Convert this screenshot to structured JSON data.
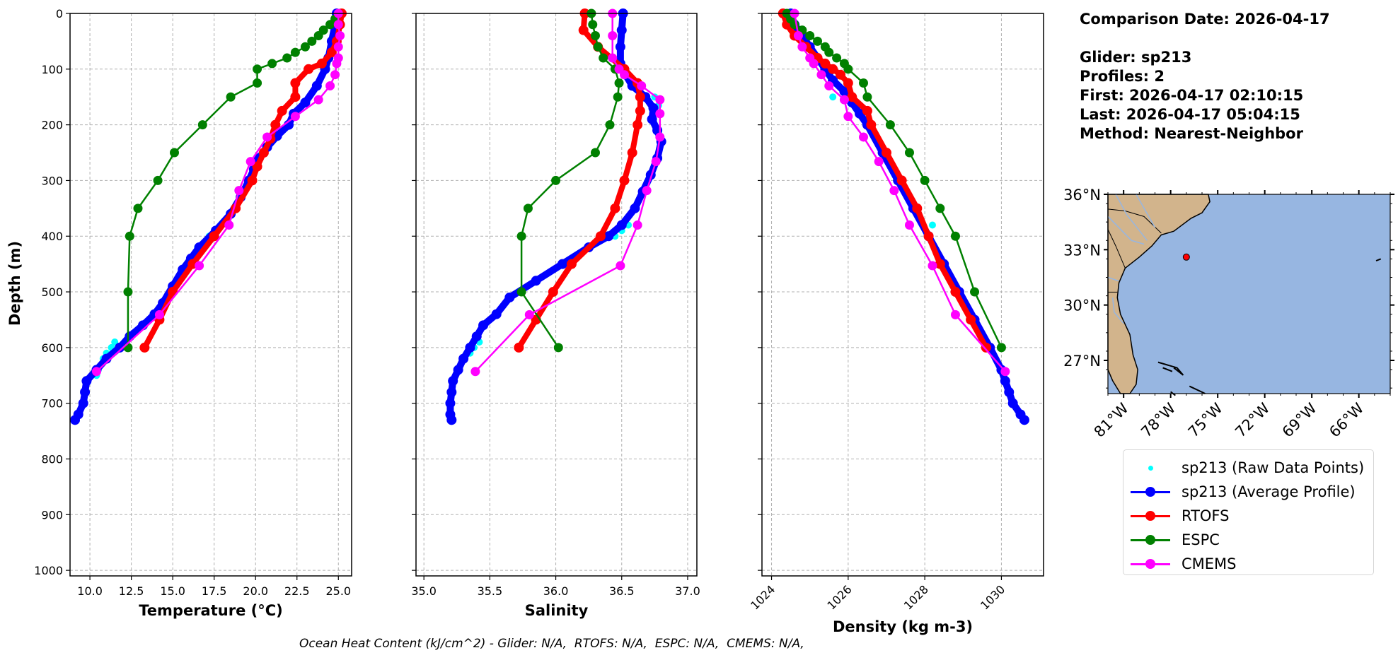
{
  "info": {
    "comparison_date": "Comparison Date: 2026-04-17",
    "glider": "Glider: sp213",
    "profiles": "Profiles: 2",
    "first": "First: 2026-04-17 02:10:15",
    "last": "Last: 2026-04-17 05:04:15",
    "method": "Method: Nearest-Neighbor"
  },
  "footer": "Ocean Heat Content (kJ/cm^2) - Glider: N/A,  RTOFS: N/A,  ESPC: N/A,  CMEMS: N/A,",
  "colors": {
    "raw": "#00ffff",
    "glider": "#0000ff",
    "rtofs": "#ff0000",
    "espc": "#008000",
    "cmems": "#ff00ff",
    "land": "#d2b48c",
    "ocean": "#97b6e1",
    "grid": "#b0b0b0"
  },
  "legend": [
    {
      "key": "raw",
      "label": "sp213 (Raw Data Points)",
      "style": "point"
    },
    {
      "key": "glider",
      "label": "sp213 (Average Profile)",
      "style": "line-marker"
    },
    {
      "key": "rtofs",
      "label": "RTOFS",
      "style": "line-marker"
    },
    {
      "key": "espc",
      "label": "ESPC",
      "style": "line-marker"
    },
    {
      "key": "cmems",
      "label": "CMEMS",
      "style": "line-marker"
    }
  ],
  "map": {
    "lat_ticks": [
      "36°N",
      "33°N",
      "30°N",
      "27°N"
    ],
    "lat_values": [
      36,
      33,
      30,
      27
    ],
    "lon_ticks": [
      "81°W",
      "78°W",
      "75°W",
      "72°W",
      "69°W",
      "66°W"
    ],
    "lon_values": [
      -81,
      -78,
      -75,
      -72,
      -69,
      -66
    ],
    "extent": {
      "lon": [
        -82,
        -64
      ],
      "lat": [
        25.2,
        36
      ]
    },
    "glider_location": {
      "lon": -77,
      "lat": 32.6
    }
  },
  "chart_data": [
    {
      "type": "line",
      "id": "temperature",
      "xlabel": "Temperature (°C)",
      "ylabel": "Depth (m)",
      "xlim": [
        8.8,
        25.8
      ],
      "ylim": [
        1010,
        0
      ],
      "xticks": [
        10.0,
        12.5,
        15.0,
        17.5,
        20.0,
        22.5,
        25.0
      ],
      "xtick_labels": [
        "10.0",
        "12.5",
        "15.0",
        "17.5",
        "20.0",
        "22.5",
        "25.0"
      ],
      "yticks": [
        0,
        100,
        200,
        300,
        400,
        500,
        600,
        700,
        800,
        900,
        1000
      ],
      "grid": true,
      "series": [
        {
          "name": "sp213 (Raw Data Points)",
          "key": "raw",
          "depth": [
            380,
            390,
            400,
            420,
            590,
            600,
            610,
            620,
            640,
            650
          ],
          "values": [
            17.9,
            17.6,
            17.2,
            16.5,
            11.5,
            11.3,
            11.0,
            10.8,
            10.5,
            10.4
          ]
        },
        {
          "name": "sp213 (Average Profile)",
          "key": "glider",
          "depth": [
            0,
            20,
            50,
            80,
            100,
            130,
            160,
            180,
            200,
            220,
            240,
            260,
            280,
            300,
            330,
            360,
            390,
            420,
            440,
            460,
            490,
            520,
            540,
            560,
            580,
            600,
            620,
            640,
            660,
            680,
            700,
            720,
            730
          ],
          "values": [
            24.9,
            24.8,
            24.6,
            24.4,
            24.2,
            23.7,
            23.0,
            22.3,
            22.0,
            21.3,
            20.7,
            20.2,
            19.9,
            19.6,
            19.1,
            18.5,
            17.6,
            16.6,
            16.1,
            15.6,
            15.0,
            14.4,
            13.9,
            13.2,
            12.4,
            11.8,
            11.0,
            10.4,
            9.8,
            9.7,
            9.6,
            9.3,
            9.1
          ]
        },
        {
          "name": "RTOFS",
          "key": "rtofs",
          "depth": [
            0,
            20,
            50,
            70,
            90,
            100,
            125,
            150,
            175,
            200,
            225,
            250,
            275,
            300,
            350,
            400,
            450,
            500,
            550,
            600
          ],
          "values": [
            25.2,
            25.1,
            24.9,
            24.6,
            24.0,
            23.2,
            22.4,
            22.4,
            21.6,
            21.2,
            20.9,
            20.5,
            20.1,
            19.8,
            18.8,
            17.5,
            16.2,
            15.0,
            14.2,
            13.3
          ]
        },
        {
          "name": "ESPC",
          "key": "espc",
          "depth": [
            0,
            10,
            20,
            30,
            40,
            50,
            60,
            70,
            80,
            90,
            100,
            125,
            150,
            200,
            250,
            300,
            350,
            400,
            500,
            600
          ],
          "values": [
            25.0,
            24.8,
            24.5,
            24.1,
            23.8,
            23.4,
            23.0,
            22.4,
            21.9,
            21.0,
            20.1,
            20.1,
            18.5,
            16.8,
            15.1,
            14.1,
            12.9,
            12.4,
            12.3,
            12.3
          ]
        },
        {
          "name": "CMEMS",
          "key": "cmems",
          "depth": [
            0,
            20,
            40,
            60,
            80,
            90,
            110,
            130,
            155,
            185,
            222,
            266,
            318,
            380,
            453,
            541,
            643
          ],
          "values": [
            25.0,
            25.0,
            25.1,
            25.0,
            25.0,
            24.9,
            24.8,
            24.5,
            23.8,
            22.4,
            20.7,
            19.7,
            19.0,
            18.4,
            16.6,
            14.2,
            10.4
          ]
        }
      ]
    },
    {
      "type": "line",
      "id": "salinity",
      "xlabel": "Salinity",
      "ylabel": "",
      "xlim": [
        34.94,
        37.07
      ],
      "ylim": [
        1010,
        0
      ],
      "xticks": [
        35.0,
        35.5,
        36.0,
        36.5,
        37.0
      ],
      "xtick_labels": [
        "35.0",
        "35.5",
        "36.0",
        "36.5",
        "37.0"
      ],
      "yticks": [
        0,
        100,
        200,
        300,
        400,
        500,
        600,
        700,
        800,
        900,
        1000
      ],
      "grid": true,
      "series": [
        {
          "name": "sp213 (Raw Data Points)",
          "key": "raw",
          "depth": [
            150,
            165,
            380,
            390,
            400,
            590,
            600,
            610
          ],
          "values": [
            36.75,
            36.78,
            36.55,
            36.5,
            36.45,
            35.42,
            35.38,
            35.35
          ]
        },
        {
          "name": "sp213 (Average Profile)",
          "key": "glider",
          "depth": [
            0,
            30,
            60,
            90,
            110,
            130,
            150,
            170,
            190,
            210,
            230,
            260,
            290,
            320,
            350,
            380,
            400,
            420,
            450,
            480,
            510,
            540,
            560,
            580,
            600,
            620,
            640,
            660,
            680,
            700,
            720,
            730
          ],
          "values": [
            36.51,
            36.5,
            36.49,
            36.49,
            36.53,
            36.58,
            36.68,
            36.74,
            36.73,
            36.77,
            36.8,
            36.77,
            36.72,
            36.66,
            36.6,
            36.5,
            36.4,
            36.25,
            36.05,
            35.85,
            35.65,
            35.55,
            35.45,
            35.4,
            35.35,
            35.3,
            35.26,
            35.22,
            35.21,
            35.2,
            35.2,
            35.21
          ]
        },
        {
          "name": "RTOFS",
          "key": "rtofs",
          "depth": [
            0,
            30,
            60,
            100,
            125,
            150,
            175,
            200,
            250,
            300,
            350,
            400,
            450,
            500,
            550,
            600
          ],
          "values": [
            36.22,
            36.21,
            36.32,
            36.52,
            36.62,
            36.64,
            36.64,
            36.62,
            36.58,
            36.52,
            36.45,
            36.34,
            36.12,
            35.98,
            35.85,
            35.72
          ]
        },
        {
          "name": "ESPC",
          "key": "espc",
          "depth": [
            0,
            20,
            40,
            60,
            80,
            100,
            125,
            150,
            200,
            250,
            300,
            350,
            400,
            500,
            600
          ],
          "values": [
            36.27,
            36.28,
            36.3,
            36.32,
            36.36,
            36.45,
            36.48,
            36.47,
            36.41,
            36.3,
            36.0,
            35.79,
            35.74,
            35.74,
            36.02
          ]
        },
        {
          "name": "CMEMS",
          "key": "cmems",
          "depth": [
            0,
            40,
            80,
            100,
            110,
            130,
            155,
            180,
            222,
            266,
            318,
            380,
            453,
            541,
            643
          ],
          "values": [
            36.43,
            36.43,
            36.43,
            36.48,
            36.52,
            36.65,
            36.79,
            36.79,
            36.79,
            36.76,
            36.69,
            36.62,
            36.49,
            35.8,
            35.39
          ]
        }
      ]
    },
    {
      "type": "line",
      "id": "density",
      "xlabel": "Density (kg m-3)",
      "ylabel": "",
      "xlim": [
        1023.75,
        1031.1
      ],
      "ylim": [
        1010,
        0
      ],
      "xticks": [
        1024,
        1026,
        1028,
        1030
      ],
      "xtick_labels": [
        "1024",
        "1026",
        "1028",
        "1030"
      ],
      "yticks": [
        0,
        100,
        200,
        300,
        400,
        500,
        600,
        700,
        800,
        900,
        1000
      ],
      "grid": true,
      "series": [
        {
          "name": "sp213 (Raw Data Points)",
          "key": "raw",
          "depth": [
            150,
            380,
            600
          ],
          "values": [
            1025.6,
            1028.2,
            1029.6
          ]
        },
        {
          "name": "sp213 (Average Profile)",
          "key": "glider",
          "depth": [
            0,
            20,
            40,
            60,
            80,
            100,
            120,
            140,
            160,
            180,
            200,
            250,
            300,
            350,
            400,
            450,
            500,
            550,
            600,
            640,
            660,
            680,
            700,
            720,
            730
          ],
          "values": [
            1024.5,
            1024.6,
            1024.8,
            1025.0,
            1025.2,
            1025.4,
            1025.6,
            1025.9,
            1026.1,
            1026.3,
            1026.5,
            1026.9,
            1027.3,
            1027.7,
            1028.1,
            1028.5,
            1028.9,
            1029.3,
            1029.7,
            1030.0,
            1030.1,
            1030.2,
            1030.3,
            1030.5,
            1030.6
          ]
        },
        {
          "name": "RTOFS",
          "key": "rtofs",
          "depth": [
            0,
            20,
            40,
            60,
            80,
            90,
            100,
            110,
            125,
            150,
            175,
            200,
            250,
            300,
            350,
            400,
            450,
            500,
            550,
            600
          ],
          "values": [
            1024.3,
            1024.4,
            1024.6,
            1024.9,
            1025.2,
            1025.4,
            1025.6,
            1025.8,
            1026.0,
            1026.1,
            1026.5,
            1026.6,
            1027.0,
            1027.4,
            1027.8,
            1028.1,
            1028.4,
            1028.8,
            1029.2,
            1029.6
          ]
        },
        {
          "name": "ESPC",
          "key": "espc",
          "depth": [
            0,
            10,
            20,
            30,
            40,
            50,
            60,
            70,
            80,
            90,
            100,
            125,
            150,
            200,
            250,
            300,
            350,
            400,
            500,
            600
          ],
          "values": [
            1024.4,
            1024.5,
            1024.6,
            1024.8,
            1025.0,
            1025.2,
            1025.4,
            1025.5,
            1025.7,
            1025.9,
            1026.0,
            1026.4,
            1026.5,
            1027.1,
            1027.6,
            1028.0,
            1028.4,
            1028.8,
            1029.3,
            1030.0
          ]
        },
        {
          "name": "CMEMS",
          "key": "cmems",
          "depth": [
            0,
            40,
            60,
            80,
            90,
            110,
            130,
            155,
            185,
            222,
            266,
            318,
            380,
            453,
            541,
            643
          ],
          "values": [
            1024.6,
            1024.7,
            1024.8,
            1025.0,
            1025.1,
            1025.3,
            1025.5,
            1025.9,
            1026.0,
            1026.4,
            1026.8,
            1027.2,
            1027.6,
            1028.2,
            1028.8,
            1030.1
          ]
        }
      ]
    }
  ]
}
